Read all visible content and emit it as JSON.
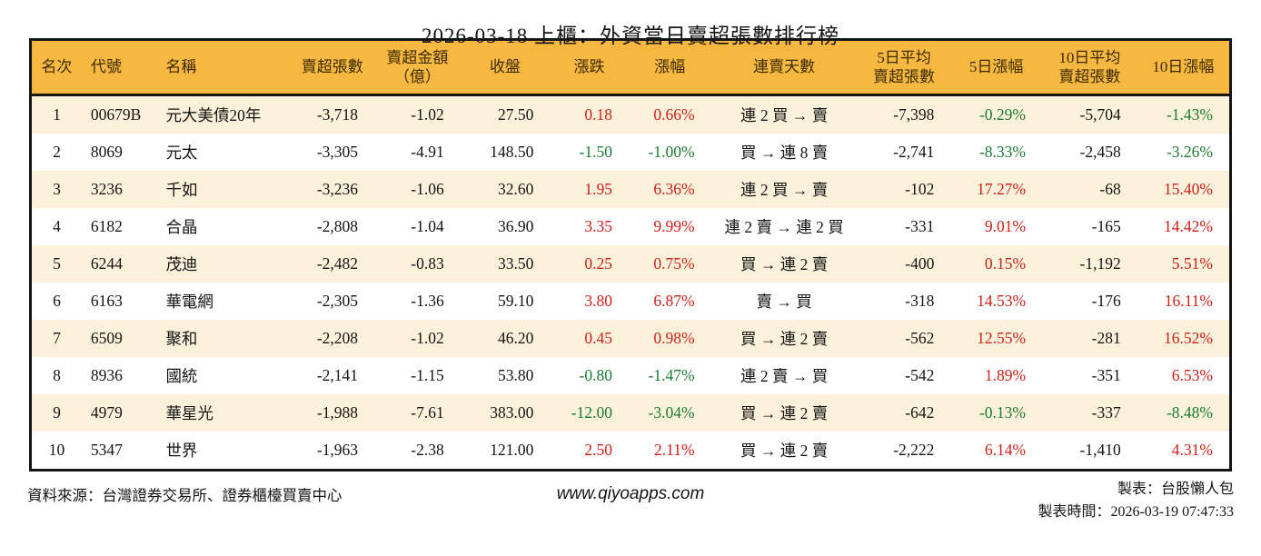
{
  "title": "2026-03-18 上櫃：外資當日賣超張數排行榜",
  "colors": {
    "up": "#cf2017",
    "down": "#1b7a33",
    "header_bg": "#f7b841",
    "row_alt_bg": "#fcf2dc",
    "border": "#161616"
  },
  "table": {
    "headers": [
      "名次",
      "代號",
      "名稱",
      "賣超張數",
      "賣超金額\n（億）",
      "收盤",
      "漲跌",
      "漲幅",
      "連賣天數",
      "5日平均\n賣超張數",
      "5日漲幅",
      "10日平均\n賣超張數",
      "10日漲幅"
    ],
    "rows": [
      {
        "rank": "1",
        "code": "00679B",
        "name": "元大美債20年",
        "sell_volume": "-3,718",
        "sell_amount": "-1.02",
        "close": "27.50",
        "change": "0.18",
        "change_dir": "up",
        "change_pct": "0.66%",
        "streak": "連 2 買 → 賣",
        "avg5": "-7,398",
        "pct5": "-0.29%",
        "pct5_dir": "down",
        "avg10": "-5,704",
        "pct10": "-1.43%",
        "pct10_dir": "down"
      },
      {
        "rank": "2",
        "code": "8069",
        "name": "元太",
        "sell_volume": "-3,305",
        "sell_amount": "-4.91",
        "close": "148.50",
        "change": "-1.50",
        "change_dir": "down",
        "change_pct": "-1.00%",
        "streak": "買 → 連 8 賣",
        "avg5": "-2,741",
        "pct5": "-8.33%",
        "pct5_dir": "down",
        "avg10": "-2,458",
        "pct10": "-3.26%",
        "pct10_dir": "down"
      },
      {
        "rank": "3",
        "code": "3236",
        "name": "千如",
        "sell_volume": "-3,236",
        "sell_amount": "-1.06",
        "close": "32.60",
        "change": "1.95",
        "change_dir": "up",
        "change_pct": "6.36%",
        "streak": "連 2 買 → 賣",
        "avg5": "-102",
        "pct5": "17.27%",
        "pct5_dir": "up",
        "avg10": "-68",
        "pct10": "15.40%",
        "pct10_dir": "up"
      },
      {
        "rank": "4",
        "code": "6182",
        "name": "合晶",
        "sell_volume": "-2,808",
        "sell_amount": "-1.04",
        "close": "36.90",
        "change": "3.35",
        "change_dir": "up",
        "change_pct": "9.99%",
        "streak": "連 2 賣 → 連 2 買",
        "avg5": "-331",
        "pct5": "9.01%",
        "pct5_dir": "up",
        "avg10": "-165",
        "pct10": "14.42%",
        "pct10_dir": "up"
      },
      {
        "rank": "5",
        "code": "6244",
        "name": "茂迪",
        "sell_volume": "-2,482",
        "sell_amount": "-0.83",
        "close": "33.50",
        "change": "0.25",
        "change_dir": "up",
        "change_pct": "0.75%",
        "streak": "買 → 連 2 賣",
        "avg5": "-400",
        "pct5": "0.15%",
        "pct5_dir": "up",
        "avg10": "-1,192",
        "pct10": "5.51%",
        "pct10_dir": "up"
      },
      {
        "rank": "6",
        "code": "6163",
        "name": "華電網",
        "sell_volume": "-2,305",
        "sell_amount": "-1.36",
        "close": "59.10",
        "change": "3.80",
        "change_dir": "up",
        "change_pct": "6.87%",
        "streak": "賣 → 買",
        "avg5": "-318",
        "pct5": "14.53%",
        "pct5_dir": "up",
        "avg10": "-176",
        "pct10": "16.11%",
        "pct10_dir": "up"
      },
      {
        "rank": "7",
        "code": "6509",
        "name": "聚和",
        "sell_volume": "-2,208",
        "sell_amount": "-1.02",
        "close": "46.20",
        "change": "0.45",
        "change_dir": "up",
        "change_pct": "0.98%",
        "streak": "買 → 連 2 賣",
        "avg5": "-562",
        "pct5": "12.55%",
        "pct5_dir": "up",
        "avg10": "-281",
        "pct10": "16.52%",
        "pct10_dir": "up"
      },
      {
        "rank": "8",
        "code": "8936",
        "name": "國統",
        "sell_volume": "-2,141",
        "sell_amount": "-1.15",
        "close": "53.80",
        "change": "-0.80",
        "change_dir": "down",
        "change_pct": "-1.47%",
        "streak": "連 2 賣 → 買",
        "avg5": "-542",
        "pct5": "1.89%",
        "pct5_dir": "up",
        "avg10": "-351",
        "pct10": "6.53%",
        "pct10_dir": "up"
      },
      {
        "rank": "9",
        "code": "4979",
        "name": "華星光",
        "sell_volume": "-1,988",
        "sell_amount": "-7.61",
        "close": "383.00",
        "change": "-12.00",
        "change_dir": "down",
        "change_pct": "-3.04%",
        "streak": "買 → 連 2 賣",
        "avg5": "-642",
        "pct5": "-0.13%",
        "pct5_dir": "down",
        "avg10": "-337",
        "pct10": "-8.48%",
        "pct10_dir": "down"
      },
      {
        "rank": "10",
        "code": "5347",
        "name": "世界",
        "sell_volume": "-1,963",
        "sell_amount": "-2.38",
        "close": "121.00",
        "change": "2.50",
        "change_dir": "up",
        "change_pct": "2.11%",
        "streak": "買 → 連 2 賣",
        "avg5": "-2,222",
        "pct5": "6.14%",
        "pct5_dir": "up",
        "avg10": "-1,410",
        "pct10": "4.31%",
        "pct10_dir": "up"
      }
    ]
  },
  "footer": {
    "source": "資料來源：台灣證券交易所、證券櫃檯買賣中心",
    "site": "www.qiyoapps.com",
    "author": "製表：台股懶人包",
    "generated": "製表時間：2026-03-19 07:47:33"
  }
}
